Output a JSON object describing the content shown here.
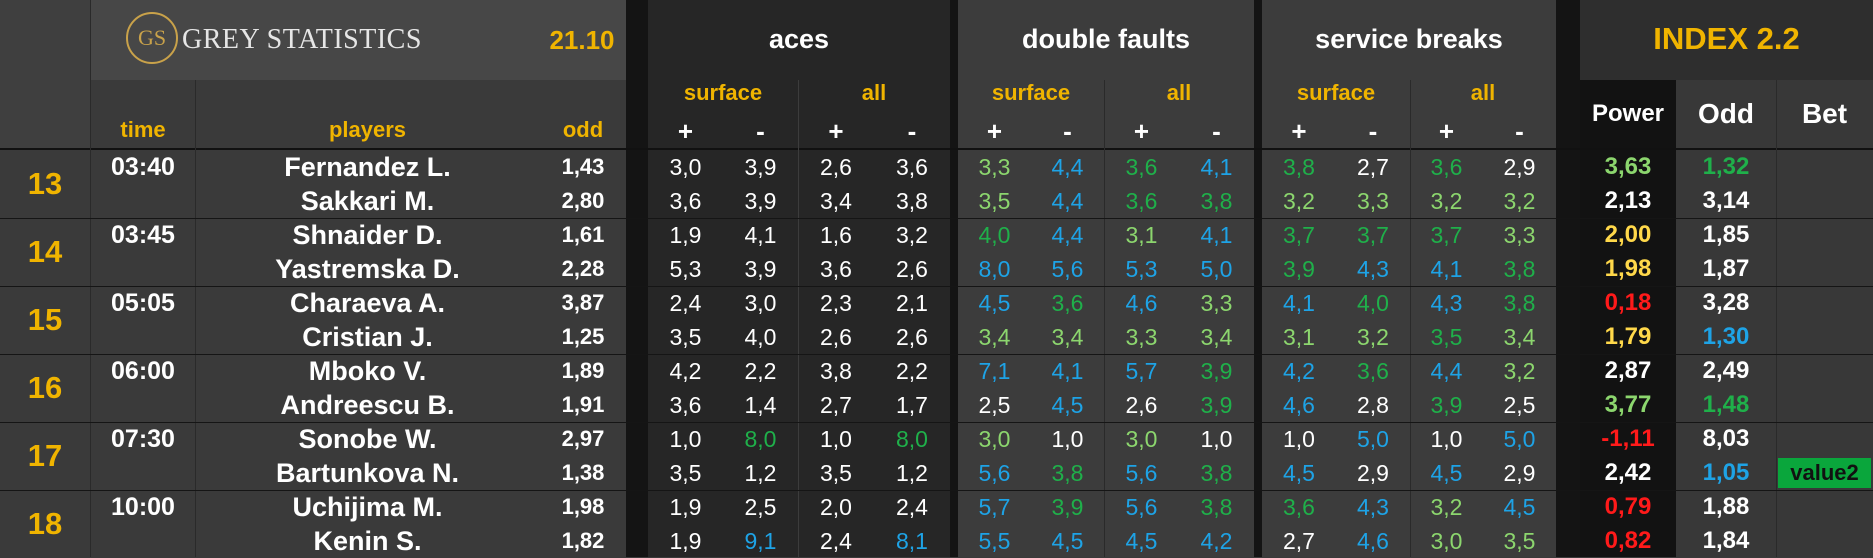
{
  "brand": {
    "logo_mark": "GS",
    "name": "GREY STATISTICS"
  },
  "date": "21.10",
  "headers": {
    "time": "time",
    "players": "players",
    "odd": "odd",
    "groups": [
      {
        "title": "aces",
        "sub": [
          "surface",
          "all"
        ]
      },
      {
        "title": "double faults",
        "sub": [
          "surface",
          "all"
        ]
      },
      {
        "title": "service breaks",
        "sub": [
          "surface",
          "all"
        ]
      }
    ],
    "plus": "+",
    "minus": "-",
    "index_title": "INDEX 2.2",
    "power": "Power",
    "index_odd": "Odd",
    "bet": "Bet"
  },
  "colors": {
    "white": "#ffffff",
    "green": "#1fb04a",
    "lightgreen": "#8cd66e",
    "blue": "#1ea3e6",
    "red": "#ff1a1a",
    "yellow": "#ffd84a",
    "gold": "#f0b400",
    "betgreen": "#0aa63c"
  },
  "matches": [
    {
      "num": "13",
      "time": "03:40",
      "players": [
        {
          "name": "Fernandez L.",
          "odd": "1,43",
          "aces": [
            [
              "3,0",
              "w"
            ],
            [
              "3,9",
              "w"
            ],
            [
              "2,6",
              "w"
            ],
            [
              "3,6",
              "w"
            ]
          ],
          "df": [
            [
              "3,3",
              "lg"
            ],
            [
              "4,4",
              "b"
            ],
            [
              "3,6",
              "g"
            ],
            [
              "4,1",
              "b"
            ]
          ],
          "sb": [
            [
              "3,8",
              "g"
            ],
            [
              "2,7",
              "w"
            ],
            [
              "3,6",
              "g"
            ],
            [
              "2,9",
              "w"
            ]
          ],
          "power": [
            "3,63",
            "lg"
          ],
          "iodd": [
            "1,32",
            "g"
          ],
          "bet": ""
        },
        {
          "name": "Sakkari M.",
          "odd": "2,80",
          "aces": [
            [
              "3,6",
              "w"
            ],
            [
              "3,9",
              "w"
            ],
            [
              "3,4",
              "w"
            ],
            [
              "3,8",
              "w"
            ]
          ],
          "df": [
            [
              "3,5",
              "lg"
            ],
            [
              "4,4",
              "b"
            ],
            [
              "3,6",
              "g"
            ],
            [
              "3,8",
              "g"
            ]
          ],
          "sb": [
            [
              "3,2",
              "lg"
            ],
            [
              "3,3",
              "lg"
            ],
            [
              "3,2",
              "lg"
            ],
            [
              "3,2",
              "lg"
            ]
          ],
          "power": [
            "2,13",
            "w"
          ],
          "iodd": [
            "3,14",
            "w"
          ],
          "bet": ""
        }
      ]
    },
    {
      "num": "14",
      "time": "03:45",
      "players": [
        {
          "name": "Shnaider D.",
          "odd": "1,61",
          "aces": [
            [
              "1,9",
              "w"
            ],
            [
              "4,1",
              "w"
            ],
            [
              "1,6",
              "w"
            ],
            [
              "3,2",
              "w"
            ]
          ],
          "df": [
            [
              "4,0",
              "g"
            ],
            [
              "4,4",
              "b"
            ],
            [
              "3,1",
              "lg"
            ],
            [
              "4,1",
              "b"
            ]
          ],
          "sb": [
            [
              "3,7",
              "g"
            ],
            [
              "3,7",
              "g"
            ],
            [
              "3,7",
              "g"
            ],
            [
              "3,3",
              "lg"
            ]
          ],
          "power": [
            "2,00",
            "y"
          ],
          "iodd": [
            "1,85",
            "w"
          ],
          "bet": ""
        },
        {
          "name": "Yastremska D.",
          "odd": "2,28",
          "aces": [
            [
              "5,3",
              "w"
            ],
            [
              "3,9",
              "w"
            ],
            [
              "3,6",
              "w"
            ],
            [
              "2,6",
              "w"
            ]
          ],
          "df": [
            [
              "8,0",
              "b"
            ],
            [
              "5,6",
              "b"
            ],
            [
              "5,3",
              "b"
            ],
            [
              "5,0",
              "b"
            ]
          ],
          "sb": [
            [
              "3,9",
              "g"
            ],
            [
              "4,3",
              "b"
            ],
            [
              "4,1",
              "b"
            ],
            [
              "3,8",
              "g"
            ]
          ],
          "power": [
            "1,98",
            "y"
          ],
          "iodd": [
            "1,87",
            "w"
          ],
          "bet": ""
        }
      ]
    },
    {
      "num": "15",
      "time": "05:05",
      "players": [
        {
          "name": "Charaeva A.",
          "odd": "3,87",
          "aces": [
            [
              "2,4",
              "w"
            ],
            [
              "3,0",
              "w"
            ],
            [
              "2,3",
              "w"
            ],
            [
              "2,1",
              "w"
            ]
          ],
          "df": [
            [
              "4,5",
              "b"
            ],
            [
              "3,6",
              "g"
            ],
            [
              "4,6",
              "b"
            ],
            [
              "3,3",
              "lg"
            ]
          ],
          "sb": [
            [
              "4,1",
              "b"
            ],
            [
              "4,0",
              "g"
            ],
            [
              "4,3",
              "b"
            ],
            [
              "3,8",
              "g"
            ]
          ],
          "power": [
            "0,18",
            "r"
          ],
          "iodd": [
            "3,28",
            "w"
          ],
          "bet": ""
        },
        {
          "name": "Cristian J.",
          "odd": "1,25",
          "aces": [
            [
              "3,5",
              "w"
            ],
            [
              "4,0",
              "w"
            ],
            [
              "2,6",
              "w"
            ],
            [
              "2,6",
              "w"
            ]
          ],
          "df": [
            [
              "3,4",
              "lg"
            ],
            [
              "3,4",
              "lg"
            ],
            [
              "3,3",
              "lg"
            ],
            [
              "3,4",
              "lg"
            ]
          ],
          "sb": [
            [
              "3,1",
              "lg"
            ],
            [
              "3,2",
              "lg"
            ],
            [
              "3,5",
              "g"
            ],
            [
              "3,4",
              "lg"
            ]
          ],
          "power": [
            "1,79",
            "y"
          ],
          "iodd": [
            "1,30",
            "b"
          ],
          "bet": ""
        }
      ]
    },
    {
      "num": "16",
      "time": "06:00",
      "players": [
        {
          "name": "Mboko V.",
          "odd": "1,89",
          "aces": [
            [
              "4,2",
              "w"
            ],
            [
              "2,2",
              "w"
            ],
            [
              "3,8",
              "w"
            ],
            [
              "2,2",
              "w"
            ]
          ],
          "df": [
            [
              "7,1",
              "b"
            ],
            [
              "4,1",
              "b"
            ],
            [
              "5,7",
              "b"
            ],
            [
              "3,9",
              "g"
            ]
          ],
          "sb": [
            [
              "4,2",
              "b"
            ],
            [
              "3,6",
              "g"
            ],
            [
              "4,4",
              "b"
            ],
            [
              "3,2",
              "lg"
            ]
          ],
          "power": [
            "2,87",
            "w"
          ],
          "iodd": [
            "2,49",
            "w"
          ],
          "bet": ""
        },
        {
          "name": "Andreescu B.",
          "odd": "1,91",
          "aces": [
            [
              "3,6",
              "w"
            ],
            [
              "1,4",
              "w"
            ],
            [
              "2,7",
              "w"
            ],
            [
              "1,7",
              "w"
            ]
          ],
          "df": [
            [
              "2,5",
              "w"
            ],
            [
              "4,5",
              "b"
            ],
            [
              "2,6",
              "w"
            ],
            [
              "3,9",
              "g"
            ]
          ],
          "sb": [
            [
              "4,6",
              "b"
            ],
            [
              "2,8",
              "w"
            ],
            [
              "3,9",
              "g"
            ],
            [
              "2,5",
              "w"
            ]
          ],
          "power": [
            "3,77",
            "lg"
          ],
          "iodd": [
            "1,48",
            "g"
          ],
          "bet": ""
        }
      ]
    },
    {
      "num": "17",
      "time": "07:30",
      "players": [
        {
          "name": "Sonobe W.",
          "odd": "2,97",
          "aces": [
            [
              "1,0",
              "w"
            ],
            [
              "8,0",
              "g"
            ],
            [
              "1,0",
              "w"
            ],
            [
              "8,0",
              "g"
            ]
          ],
          "df": [
            [
              "3,0",
              "lg"
            ],
            [
              "1,0",
              "w"
            ],
            [
              "3,0",
              "lg"
            ],
            [
              "1,0",
              "w"
            ]
          ],
          "sb": [
            [
              "1,0",
              "w"
            ],
            [
              "5,0",
              "b"
            ],
            [
              "1,0",
              "w"
            ],
            [
              "5,0",
              "b"
            ]
          ],
          "power": [
            "-1,11",
            "r"
          ],
          "iodd": [
            "8,03",
            "w"
          ],
          "bet": ""
        },
        {
          "name": "Bartunkova N.",
          "odd": "1,38",
          "aces": [
            [
              "3,5",
              "w"
            ],
            [
              "1,2",
              "w"
            ],
            [
              "3,5",
              "w"
            ],
            [
              "1,2",
              "w"
            ]
          ],
          "df": [
            [
              "5,6",
              "b"
            ],
            [
              "3,8",
              "g"
            ],
            [
              "5,6",
              "b"
            ],
            [
              "3,8",
              "g"
            ]
          ],
          "sb": [
            [
              "4,5",
              "b"
            ],
            [
              "2,9",
              "w"
            ],
            [
              "4,5",
              "b"
            ],
            [
              "2,9",
              "w"
            ]
          ],
          "power": [
            "2,42",
            "w"
          ],
          "iodd": [
            "1,05",
            "b"
          ],
          "bet": "value2"
        }
      ]
    },
    {
      "num": "18",
      "time": "10:00",
      "players": [
        {
          "name": "Uchijima M.",
          "odd": "1,98",
          "aces": [
            [
              "1,9",
              "w"
            ],
            [
              "2,5",
              "w"
            ],
            [
              "2,0",
              "w"
            ],
            [
              "2,4",
              "w"
            ]
          ],
          "df": [
            [
              "5,7",
              "b"
            ],
            [
              "3,9",
              "g"
            ],
            [
              "5,6",
              "b"
            ],
            [
              "3,8",
              "g"
            ]
          ],
          "sb": [
            [
              "3,6",
              "g"
            ],
            [
              "4,3",
              "b"
            ],
            [
              "3,2",
              "lg"
            ],
            [
              "4,5",
              "b"
            ]
          ],
          "power": [
            "0,79",
            "r"
          ],
          "iodd": [
            "1,88",
            "w"
          ],
          "bet": ""
        },
        {
          "name": "Kenin S.",
          "odd": "1,82",
          "aces": [
            [
              "1,9",
              "w"
            ],
            [
              "9,1",
              "b"
            ],
            [
              "2,4",
              "w"
            ],
            [
              "8,1",
              "b"
            ]
          ],
          "df": [
            [
              "5,5",
              "b"
            ],
            [
              "4,5",
              "b"
            ],
            [
              "4,5",
              "b"
            ],
            [
              "4,2",
              "b"
            ]
          ],
          "sb": [
            [
              "2,7",
              "w"
            ],
            [
              "4,6",
              "b"
            ],
            [
              "3,0",
              "lg"
            ],
            [
              "3,5",
              "lg"
            ]
          ],
          "power": [
            "0,82",
            "r"
          ],
          "iodd": [
            "1,84",
            "w"
          ],
          "bet": ""
        }
      ]
    }
  ]
}
